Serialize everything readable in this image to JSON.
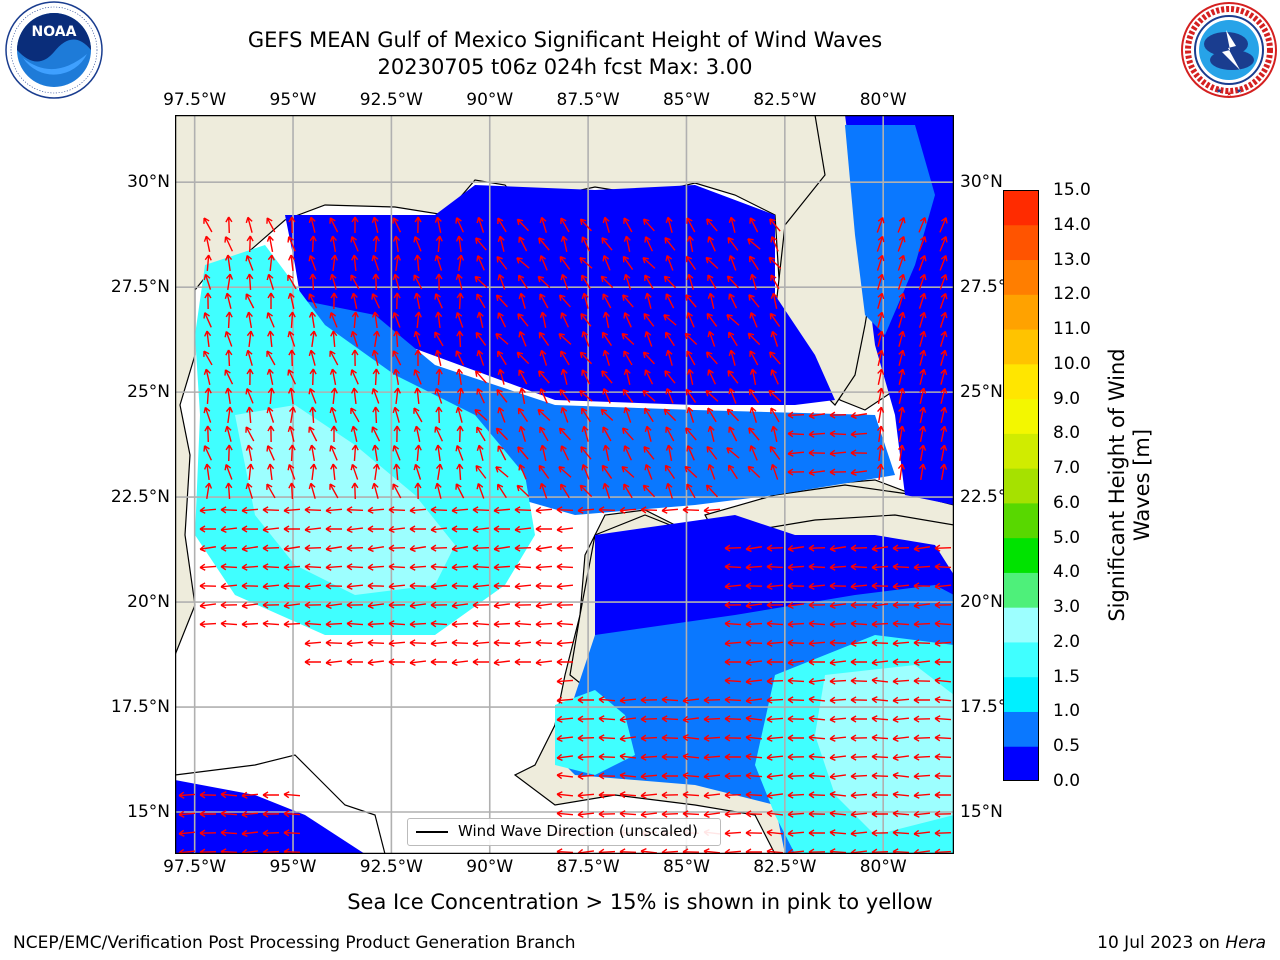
{
  "title": {
    "line1": "GEFS MEAN Gulf of Mexico Significant Height of Wind Waves",
    "line2": "20230705 t06z 024h fcst   Max: 3.00"
  },
  "logos": {
    "noaa_text": "NOAA",
    "noaa_ring": "NATIONAL OCEANIC AND ATMOSPHERIC ADMINISTRATION · U.S. DEPARTMENT OF COMMERCE",
    "nws_ring": "NATIONAL WEATHER SERVICE"
  },
  "map": {
    "lon_ticks": [
      "97.5°W",
      "95°W",
      "92.5°W",
      "90°W",
      "87.5°W",
      "85°W",
      "82.5°W",
      "80°W"
    ],
    "lon_values": [
      -97.5,
      -95,
      -92.5,
      -90,
      -87.5,
      -85,
      -82.5,
      -80
    ],
    "lat_ticks": [
      "30°N",
      "27.5°N",
      "25°N",
      "22.5°N",
      "20°N",
      "17.5°N",
      "15°N"
    ],
    "lat_values": [
      30,
      27.5,
      25,
      22.5,
      20,
      17.5,
      15
    ],
    "extent": {
      "lon_min": -98,
      "lon_max": -78.2,
      "lat_min": 14,
      "lat_max": 31.6
    },
    "land_color": "#eeecdc",
    "grid_color": "#b0b0b0",
    "vector_color": "#ff0000",
    "legend_label": "Wind Wave Direction (unscaled)"
  },
  "colorbar": {
    "label_line1": "Significant Height of Wind",
    "label_line2": "Waves [m]",
    "tick_labels": [
      "0.0",
      "0.5",
      "1.0",
      "1.5",
      "2.0",
      "3.0",
      "4.0",
      "5.0",
      "6.0",
      "7.0",
      "8.0",
      "9.0",
      "10.0",
      "11.0",
      "12.0",
      "13.0",
      "14.0",
      "15.0"
    ],
    "colors": [
      "#0000ff",
      "#0a78ff",
      "#00f0ff",
      "#40ffff",
      "#9dffff",
      "#4ef07a",
      "#00e300",
      "#58d800",
      "#a6e100",
      "#d0ec00",
      "#f3f700",
      "#ffe600",
      "#ffc300",
      "#ffa200",
      "#ff7e00",
      "#ff5400",
      "#ff2b00",
      "#ff0000"
    ]
  },
  "footer": {
    "note": "Sea Ice Concentration > 15% is shown in pink to yellow",
    "left": "NCEP/EMC/Verification Post Processing Product Generation Branch",
    "right_prefix": "10 Jul 2023 on ",
    "right_machine": "Hera"
  }
}
